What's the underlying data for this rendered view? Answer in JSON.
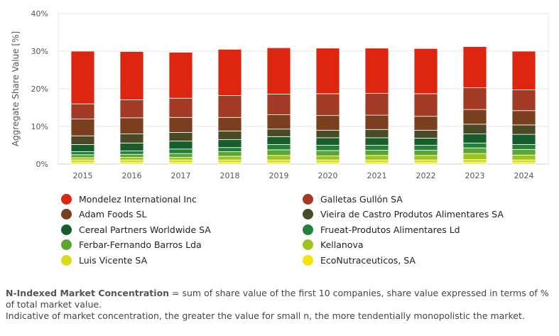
{
  "chart_data": {
    "type": "bar",
    "stacked": true,
    "ylabel": "Aggregate Share Value [%]",
    "ylim": [
      0,
      40
    ],
    "yticks": [
      "0%",
      "10%",
      "20%",
      "30%",
      "40%"
    ],
    "grid": true,
    "legend_position": "bottom",
    "categories": [
      "2015",
      "2016",
      "2017",
      "2018",
      "2019",
      "2020",
      "2021",
      "2022",
      "2023",
      "2024"
    ],
    "series": [
      {
        "name": "EcoNutraceuticos, SA",
        "color": "#f5e400",
        "values": [
          0.4,
          0.4,
          0.4,
          0.4,
          0.4,
          0.4,
          0.4,
          0.4,
          0.4,
          0.4
        ]
      },
      {
        "name": "Luis Vicente SA",
        "color": "#d8dc1a",
        "values": [
          0.7,
          0.7,
          0.7,
          0.7,
          0.7,
          0.7,
          0.7,
          0.7,
          0.8,
          0.7
        ]
      },
      {
        "name": "Kellanova",
        "color": "#9ec41c",
        "values": [
          0.6,
          0.7,
          0.7,
          1.0,
          1.2,
          1.1,
          1.2,
          1.2,
          1.6,
          1.3
        ]
      },
      {
        "name": "Ferbar-Fernando Barros Lda",
        "color": "#5ba533",
        "values": [
          0.8,
          0.8,
          1.0,
          1.2,
          1.5,
          1.4,
          1.4,
          1.4,
          1.5,
          1.5
        ]
      },
      {
        "name": "Frueat-Produtos Alimentares Ld",
        "color": "#22823a",
        "values": [
          0.8,
          0.9,
          1.2,
          1.1,
          1.4,
          1.4,
          1.3,
          1.3,
          1.3,
          1.3
        ]
      },
      {
        "name": "Cereal Partners Worldwide SA",
        "color": "#175e2c",
        "values": [
          1.9,
          2.1,
          2.1,
          2.1,
          2.1,
          2.0,
          2.0,
          1.9,
          2.4,
          2.7
        ]
      },
      {
        "name": "Vieira de Castro Produtos Alimentares SA",
        "color": "#4b4a26",
        "values": [
          2.3,
          2.4,
          2.3,
          2.3,
          2.0,
          2.0,
          2.2,
          2.1,
          2.6,
          2.5
        ]
      },
      {
        "name": "Adam Foods SL",
        "color": "#7a3f1e",
        "values": [
          4.5,
          4.3,
          4.0,
          3.6,
          3.8,
          3.9,
          3.8,
          3.7,
          3.9,
          3.8
        ]
      },
      {
        "name": "Galletas Gullón SA",
        "color": "#a33a26",
        "values": [
          4.0,
          4.8,
          5.1,
          5.8,
          5.5,
          5.8,
          5.8,
          6.0,
          5.8,
          5.5
        ]
      },
      {
        "name": "Mondelez International Inc",
        "color": "#dd2510",
        "values": [
          14.0,
          12.8,
          12.2,
          12.3,
          12.3,
          12.1,
          12.0,
          12.0,
          10.9,
          10.3
        ]
      }
    ],
    "legend_order": [
      "Mondelez International Inc",
      "Galletas Gullón SA",
      "Adam Foods SL",
      "Vieira de Castro Produtos Alimentares SA",
      "Cereal Partners Worldwide SA",
      "Frueat-Produtos Alimentares Ld",
      "Ferbar-Fernando Barros Lda",
      "Kellanova",
      "Luis Vicente SA",
      "EcoNutraceuticos, SA"
    ]
  },
  "note": {
    "title": "N-Indexed Market Concentration",
    "line1": " = sum of share value of the first 10 companies, share value expressed in terms of % of total market value.",
    "line2": "Indicative of market concentration, the greater the value for small n, the more tendentially monopolistic the market."
  }
}
